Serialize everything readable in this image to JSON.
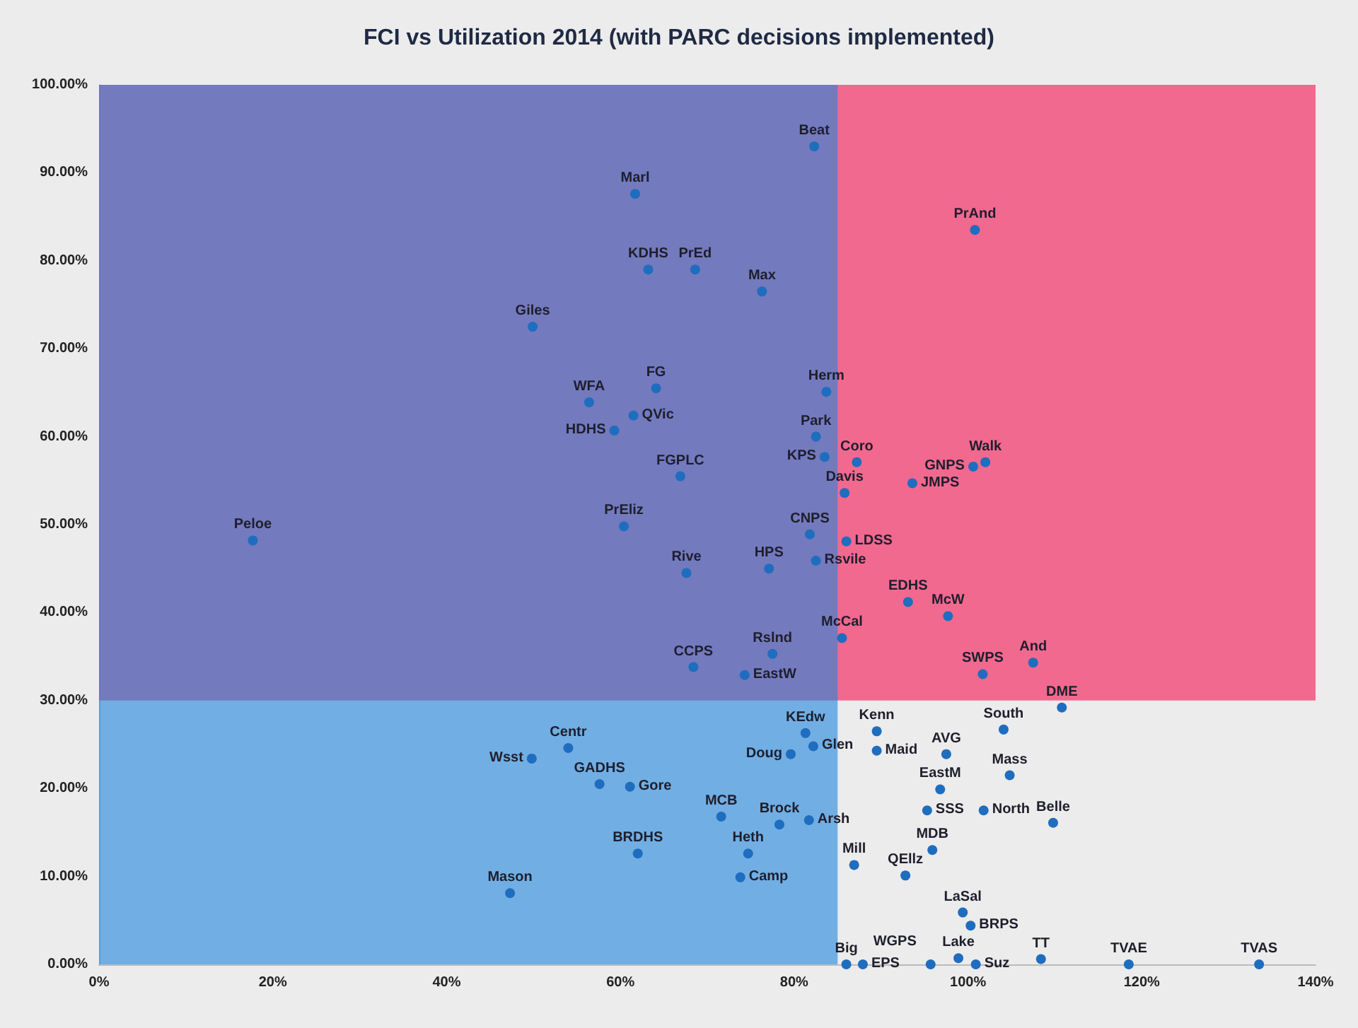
{
  "chart_data": {
    "type": "scatter",
    "title": "FCI vs Utilization 2014 (with PARC decisions implemented)",
    "x": [
      61.7,
      63.2,
      49.9,
      64.1,
      56.4,
      61.5,
      59.3,
      66.9,
      60.4,
      17.7,
      82.3,
      100.8,
      68.6,
      76.3,
      83.7,
      82.5,
      83.5,
      87.2,
      102.0,
      100.6,
      93.6,
      85.8,
      81.8,
      86.0,
      77.1,
      67.6,
      82.5,
      93.1,
      97.7,
      85.5,
      77.5,
      68.4,
      107.5,
      101.7,
      74.3,
      110.8,
      81.3,
      89.5,
      104.1,
      82.2,
      79.6,
      89.5,
      97.5,
      104.8,
      96.8,
      95.3,
      101.8,
      109.8,
      71.6,
      78.3,
      81.7,
      74.7,
      95.9,
      86.9,
      73.8,
      92.8,
      99.4,
      100.3,
      98.9,
      108.4,
      86.0,
      87.9,
      95.7,
      100.9,
      118.5,
      133.5,
      54.0,
      49.8,
      57.6,
      61.1,
      62.0,
      47.3
    ],
    "series": [
      {
        "color": "#1f6dbf",
        "values": [
          87.6,
          79.0,
          72.5,
          65.5,
          63.9,
          62.4,
          60.7,
          55.5,
          49.8,
          48.2,
          93.0,
          83.5,
          79.0,
          76.5,
          65.1,
          60.0,
          57.7,
          57.1,
          57.1,
          56.6,
          54.7,
          53.6,
          48.9,
          48.1,
          45.0,
          44.5,
          45.9,
          41.2,
          39.6,
          37.1,
          35.3,
          33.8,
          34.3,
          33.0,
          32.9,
          29.2,
          26.3,
          26.5,
          26.7,
          24.8,
          23.9,
          24.3,
          23.9,
          21.5,
          19.9,
          17.5,
          17.5,
          16.1,
          16.8,
          15.9,
          16.4,
          12.6,
          13.0,
          11.3,
          9.9,
          10.1,
          5.9,
          4.4,
          0.7,
          0.6,
          0,
          0,
          0,
          0,
          0,
          0,
          24.6,
          23.4,
          20.5,
          20.2,
          12.6,
          8.1
        ]
      }
    ],
    "annotations": [
      {
        "text": "Marl",
        "x": 61.7,
        "y": 87.6
      },
      {
        "text": "KDHS",
        "x": 63.2,
        "y": 79.0
      },
      {
        "text": "Giles",
        "x": 49.9,
        "y": 72.5
      },
      {
        "text": "FG",
        "x": 64.1,
        "y": 65.5
      },
      {
        "text": "WFA",
        "x": 56.4,
        "y": 63.9
      },
      {
        "text": "QVic",
        "x": 61.5,
        "y": 62.4
      },
      {
        "text": "HDHS",
        "x": 59.3,
        "y": 60.7
      },
      {
        "text": "FGPLC",
        "x": 66.9,
        "y": 55.5
      },
      {
        "text": "PrEliz",
        "x": 60.4,
        "y": 49.8
      },
      {
        "text": "Peloe",
        "x": 17.7,
        "y": 48.2
      },
      {
        "text": "Beat",
        "x": 82.3,
        "y": 93.0
      },
      {
        "text": "PrAnd",
        "x": 100.8,
        "y": 83.5
      },
      {
        "text": "PrEd",
        "x": 68.6,
        "y": 79.0
      },
      {
        "text": "Max",
        "x": 76.3,
        "y": 76.5
      },
      {
        "text": "Herm",
        "x": 83.7,
        "y": 65.1
      },
      {
        "text": "Park",
        "x": 82.5,
        "y": 60.0
      },
      {
        "text": "KPS",
        "x": 83.5,
        "y": 57.7
      },
      {
        "text": "Coro",
        "x": 87.2,
        "y": 57.1
      },
      {
        "text": "Walk",
        "x": 102.0,
        "y": 57.1
      },
      {
        "text": "GNPS",
        "x": 100.6,
        "y": 56.6
      },
      {
        "text": "JMPS",
        "x": 93.6,
        "y": 54.7
      },
      {
        "text": "Davis",
        "x": 85.8,
        "y": 53.6
      },
      {
        "text": "CNPS",
        "x": 81.8,
        "y": 48.9
      },
      {
        "text": "LDSS",
        "x": 86.0,
        "y": 48.1
      },
      {
        "text": "HPS",
        "x": 77.1,
        "y": 45.0
      },
      {
        "text": "Rive",
        "x": 67.6,
        "y": 44.5
      },
      {
        "text": "Rsvile",
        "x": 82.5,
        "y": 45.9
      },
      {
        "text": "EDHS",
        "x": 93.1,
        "y": 41.2
      },
      {
        "text": "McW",
        "x": 97.7,
        "y": 39.6
      },
      {
        "text": "McCal",
        "x": 85.5,
        "y": 37.1
      },
      {
        "text": "Rslnd",
        "x": 77.5,
        "y": 35.3
      },
      {
        "text": "CCPS",
        "x": 68.4,
        "y": 33.8
      },
      {
        "text": "And",
        "x": 107.5,
        "y": 34.3
      },
      {
        "text": "SWPS",
        "x": 101.7,
        "y": 33.0
      },
      {
        "text": "EastW",
        "x": 74.3,
        "y": 32.9
      },
      {
        "text": "DME",
        "x": 110.8,
        "y": 29.2
      },
      {
        "text": "KEdw",
        "x": 81.3,
        "y": 26.3
      },
      {
        "text": "Kenn",
        "x": 89.5,
        "y": 26.5
      },
      {
        "text": "South",
        "x": 104.1,
        "y": 26.7
      },
      {
        "text": "Glen",
        "x": 82.2,
        "y": 24.8
      },
      {
        "text": "Doug",
        "x": 79.6,
        "y": 23.9
      },
      {
        "text": "Maid",
        "x": 89.5,
        "y": 24.3
      },
      {
        "text": "AVG",
        "x": 97.5,
        "y": 23.9
      },
      {
        "text": "Mass",
        "x": 104.8,
        "y": 21.5
      },
      {
        "text": "EastM",
        "x": 96.8,
        "y": 19.9
      },
      {
        "text": "SSS",
        "x": 95.3,
        "y": 17.5
      },
      {
        "text": "North",
        "x": 101.8,
        "y": 17.5
      },
      {
        "text": "Belle",
        "x": 109.8,
        "y": 16.1
      },
      {
        "text": "MCB",
        "x": 71.6,
        "y": 16.8
      },
      {
        "text": "Brock",
        "x": 78.3,
        "y": 15.9
      },
      {
        "text": "Arsh",
        "x": 81.7,
        "y": 16.4
      },
      {
        "text": "Heth",
        "x": 74.7,
        "y": 12.6
      },
      {
        "text": "MDB",
        "x": 95.9,
        "y": 13.0
      },
      {
        "text": "Mill",
        "x": 86.9,
        "y": 11.3
      },
      {
        "text": "Camp",
        "x": 73.8,
        "y": 9.9
      },
      {
        "text": "QEllz",
        "x": 92.8,
        "y": 10.1
      },
      {
        "text": "LaSal",
        "x": 99.4,
        "y": 5.9
      },
      {
        "text": "BRPS",
        "x": 100.3,
        "y": 4.4
      },
      {
        "text": "Lake",
        "x": 98.9,
        "y": 0.7
      },
      {
        "text": "TT",
        "x": 108.4,
        "y": 0.6
      },
      {
        "text": "Big",
        "x": 86.0,
        "y": 0
      },
      {
        "text": "EPS",
        "x": 87.9,
        "y": 0
      },
      {
        "text": "WGPS",
        "x": 95.7,
        "y": 0
      },
      {
        "text": "Suz",
        "x": 100.9,
        "y": 0
      },
      {
        "text": "TVAE",
        "x": 118.5,
        "y": 0
      },
      {
        "text": "TVAS",
        "x": 133.5,
        "y": 0
      },
      {
        "text": "Centr",
        "x": 54.0,
        "y": 24.6
      },
      {
        "text": "Wsst",
        "x": 49.8,
        "y": 23.4
      },
      {
        "text": "GADHS",
        "x": 57.6,
        "y": 20.5
      },
      {
        "text": "Gore",
        "x": 61.1,
        "y": 20.2
      },
      {
        "text": "BRDHS",
        "x": 62.0,
        "y": 12.6
      },
      {
        "text": "Mason",
        "x": 47.3,
        "y": 8.1
      }
    ],
    "bands": [
      {
        "axis": "y",
        "from": 30,
        "to": 100,
        "color": "#f2527f"
      },
      {
        "axis": "x",
        "from": 0,
        "to": 85,
        "color": "#1f86dd"
      }
    ],
    "xlim": [
      0,
      140
    ],
    "xticks": [
      {
        "value": 0,
        "label": "0%"
      },
      {
        "value": 20,
        "label": "20%"
      },
      {
        "value": 40,
        "label": "40%"
      },
      {
        "value": 60,
        "label": "60%"
      },
      {
        "value": 80,
        "label": "80%"
      },
      {
        "value": 100,
        "label": "100%"
      },
      {
        "value": 120,
        "label": "120%"
      },
      {
        "value": 140,
        "label": "140%"
      }
    ],
    "ylim": [
      0,
      100
    ],
    "yticks": [
      {
        "value": 0,
        "label": "0.00%"
      },
      {
        "value": 10,
        "label": "10.00%"
      },
      {
        "value": 20,
        "label": "20.00%"
      },
      {
        "value": 30,
        "label": "30.00%"
      },
      {
        "value": 40,
        "label": "40.00%"
      },
      {
        "value": 50,
        "label": "50.00%"
      },
      {
        "value": 60,
        "label": "60.00%"
      },
      {
        "value": 70,
        "label": "70.00%"
      },
      {
        "value": 80,
        "label": "80.00%"
      },
      {
        "value": 90,
        "label": "90.00%"
      },
      {
        "value": 100,
        "label": "100.00%"
      }
    ],
    "marker": "circle"
  }
}
